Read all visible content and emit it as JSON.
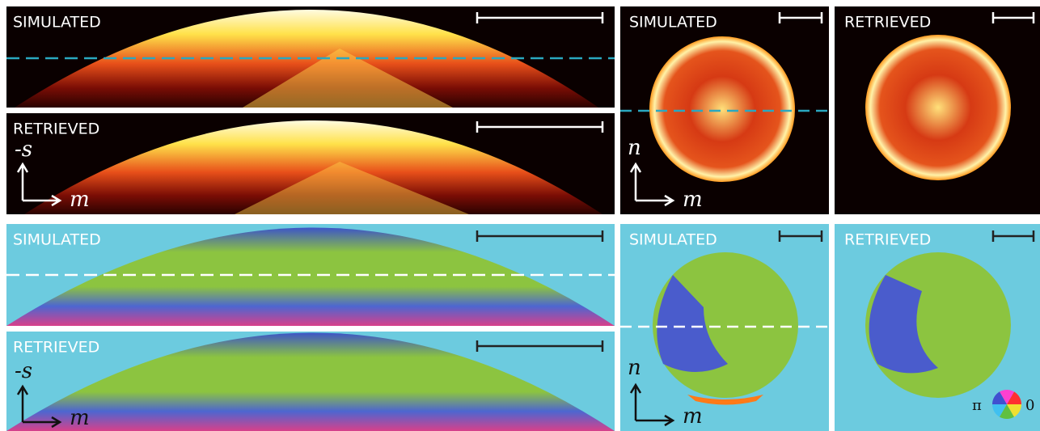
{
  "intensity": {
    "slice": [
      {
        "label": "SIMULATED"
      },
      {
        "label": "RETRIEVED"
      }
    ],
    "cross": [
      {
        "label": "SIMULATED"
      },
      {
        "label": "RETRIEVED"
      }
    ]
  },
  "phase": {
    "slice": [
      {
        "label": "SIMULATED"
      },
      {
        "label": "RETRIEVED"
      }
    ],
    "cross": [
      {
        "label": "SIMULATED"
      },
      {
        "label": "RETRIEVED"
      }
    ]
  },
  "axis_labels": {
    "slice_vertical": "-s",
    "horizontal": "m",
    "cross_vertical": "n"
  },
  "colorwheel": {
    "left": "π",
    "right": "0"
  }
}
